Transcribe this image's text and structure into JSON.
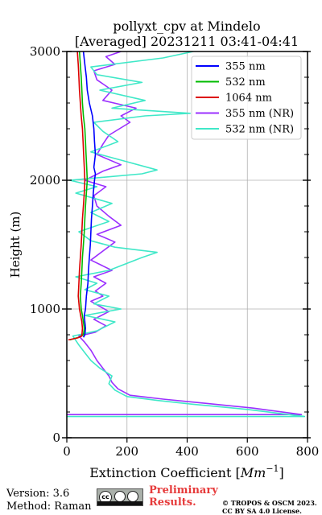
{
  "chart_data": {
    "type": "line",
    "title": "pollyxt_cpv at Mindelo",
    "subtitle": "[Averaged] 20231211 03:41-04:41",
    "xlabel_prefix": "Extinction Coefficient [",
    "xlabel_unit": "Mm",
    "xlabel_exp": "−1",
    "xlabel_suffix": "]",
    "ylabel": "Height (m)",
    "xlim": [
      0,
      800
    ],
    "ylim": [
      0,
      3000
    ],
    "xticks": [
      0,
      200,
      400,
      600,
      800
    ],
    "yticks": [
      0,
      1000,
      2000,
      3000
    ],
    "grid": true,
    "legend_position": "top-right",
    "series": [
      {
        "name": "355 nm",
        "color": "#0000ff",
        "points": [
          [
            55,
            780
          ],
          [
            60,
            800
          ],
          [
            62,
            850
          ],
          [
            60,
            900
          ],
          [
            58,
            950
          ],
          [
            62,
            1000
          ],
          [
            65,
            1100
          ],
          [
            70,
            1200
          ],
          [
            72,
            1300
          ],
          [
            75,
            1400
          ],
          [
            78,
            1500
          ],
          [
            80,
            1600
          ],
          [
            82,
            1700
          ],
          [
            85,
            1800
          ],
          [
            88,
            1900
          ],
          [
            92,
            2000
          ],
          [
            95,
            2050
          ],
          [
            90,
            2100
          ],
          [
            95,
            2200
          ],
          [
            92,
            2300
          ],
          [
            90,
            2400
          ],
          [
            85,
            2500
          ],
          [
            75,
            2600
          ],
          [
            68,
            2700
          ],
          [
            65,
            2800
          ],
          [
            60,
            2900
          ],
          [
            55,
            3000
          ]
        ]
      },
      {
        "name": "532 nm",
        "color": "#00bb00",
        "points": [
          [
            10,
            760
          ],
          [
            40,
            780
          ],
          [
            55,
            800
          ],
          [
            58,
            850
          ],
          [
            55,
            900
          ],
          [
            52,
            950
          ],
          [
            48,
            1000
          ],
          [
            45,
            1100
          ],
          [
            48,
            1200
          ],
          [
            50,
            1300
          ],
          [
            52,
            1400
          ],
          [
            55,
            1500
          ],
          [
            58,
            1600
          ],
          [
            60,
            1700
          ],
          [
            62,
            1800
          ],
          [
            65,
            1900
          ],
          [
            68,
            2000
          ],
          [
            66,
            2100
          ],
          [
            64,
            2200
          ],
          [
            62,
            2300
          ],
          [
            60,
            2400
          ],
          [
            55,
            2500
          ],
          [
            52,
            2600
          ],
          [
            50,
            2700
          ],
          [
            48,
            2800
          ],
          [
            45,
            2900
          ],
          [
            42,
            3000
          ]
        ]
      },
      {
        "name": "1064 nm",
        "color": "#dd0000",
        "points": [
          [
            5,
            760
          ],
          [
            35,
            775
          ],
          [
            50,
            790
          ],
          [
            52,
            850
          ],
          [
            50,
            900
          ],
          [
            46,
            950
          ],
          [
            42,
            1000
          ],
          [
            38,
            1100
          ],
          [
            40,
            1200
          ],
          [
            42,
            1300
          ],
          [
            45,
            1400
          ],
          [
            48,
            1500
          ],
          [
            50,
            1600
          ],
          [
            52,
            1700
          ],
          [
            55,
            1800
          ],
          [
            58,
            1900
          ],
          [
            60,
            2000
          ],
          [
            58,
            2100
          ],
          [
            56,
            2200
          ],
          [
            54,
            2300
          ],
          [
            52,
            2400
          ],
          [
            48,
            2500
          ],
          [
            45,
            2600
          ],
          [
            42,
            2700
          ],
          [
            40,
            2800
          ],
          [
            38,
            2900
          ],
          [
            35,
            3000
          ]
        ]
      },
      {
        "name": "355 nm (NR)",
        "color": "#9b30ff",
        "points": [
          [
            0,
            180
          ],
          [
            780,
            180
          ],
          [
            620,
            230
          ],
          [
            450,
            270
          ],
          [
            320,
            300
          ],
          [
            210,
            330
          ],
          [
            170,
            380
          ],
          [
            150,
            430
          ],
          [
            140,
            480
          ],
          [
            120,
            540
          ],
          [
            100,
            600
          ],
          [
            80,
            680
          ],
          [
            60,
            740
          ],
          [
            40,
            790
          ],
          [
            95,
            820
          ],
          [
            130,
            870
          ],
          [
            90,
            920
          ],
          [
            140,
            980
          ],
          [
            110,
            1020
          ],
          [
            80,
            1060
          ],
          [
            120,
            1100
          ],
          [
            95,
            1140
          ],
          [
            130,
            1200
          ],
          [
            90,
            1250
          ],
          [
            150,
            1300
          ],
          [
            80,
            1380
          ],
          [
            120,
            1450
          ],
          [
            160,
            1520
          ],
          [
            100,
            1580
          ],
          [
            180,
            1650
          ],
          [
            140,
            1720
          ],
          [
            100,
            1800
          ],
          [
            90,
            1880
          ],
          [
            130,
            1950
          ],
          [
            60,
            2000
          ],
          [
            120,
            2070
          ],
          [
            180,
            2120
          ],
          [
            100,
            2200
          ],
          [
            120,
            2280
          ],
          [
            140,
            2350
          ],
          [
            210,
            2450
          ],
          [
            180,
            2500
          ],
          [
            230,
            2560
          ],
          [
            120,
            2620
          ],
          [
            150,
            2700
          ],
          [
            100,
            2780
          ],
          [
            90,
            2850
          ],
          [
            160,
            2900
          ],
          [
            130,
            2960
          ],
          [
            180,
            3000
          ]
        ]
      },
      {
        "name": "532 nm (NR)",
        "color": "#40e8c8",
        "points": [
          [
            0,
            165
          ],
          [
            790,
            165
          ],
          [
            600,
            220
          ],
          [
            420,
            260
          ],
          [
            300,
            290
          ],
          [
            200,
            320
          ],
          [
            160,
            370
          ],
          [
            140,
            420
          ],
          [
            150,
            480
          ],
          [
            110,
            540
          ],
          [
            80,
            600
          ],
          [
            60,
            660
          ],
          [
            40,
            720
          ],
          [
            20,
            790
          ],
          [
            100,
            830
          ],
          [
            160,
            900
          ],
          [
            60,
            950
          ],
          [
            180,
            1000
          ],
          [
            90,
            1040
          ],
          [
            140,
            1100
          ],
          [
            60,
            1150
          ],
          [
            100,
            1200
          ],
          [
            30,
            1250
          ],
          [
            140,
            1300
          ],
          [
            250,
            1400
          ],
          [
            300,
            1440
          ],
          [
            160,
            1480
          ],
          [
            80,
            1530
          ],
          [
            40,
            1600
          ],
          [
            140,
            1680
          ],
          [
            80,
            1750
          ],
          [
            150,
            1820
          ],
          [
            30,
            1900
          ],
          [
            100,
            1950
          ],
          [
            10,
            2000
          ],
          [
            250,
            2050
          ],
          [
            300,
            2080
          ],
          [
            190,
            2150
          ],
          [
            80,
            2220
          ],
          [
            170,
            2300
          ],
          [
            120,
            2380
          ],
          [
            90,
            2450
          ],
          [
            260,
            2500
          ],
          [
            410,
            2520
          ],
          [
            150,
            2560
          ],
          [
            260,
            2620
          ],
          [
            110,
            2700
          ],
          [
            250,
            2760
          ],
          [
            100,
            2820
          ],
          [
            80,
            2880
          ],
          [
            320,
            2950
          ],
          [
            420,
            3000
          ]
        ]
      }
    ]
  },
  "footer": {
    "version": "Version: 3.6",
    "method": "Method: Raman",
    "license_badge": "cc",
    "preliminary_line1": "Preliminary",
    "preliminary_line2": "Results.",
    "copyright_line1": "© TROPOS & OSCM 2023.",
    "copyright_line2": "CC BY SA 4.0 License."
  }
}
